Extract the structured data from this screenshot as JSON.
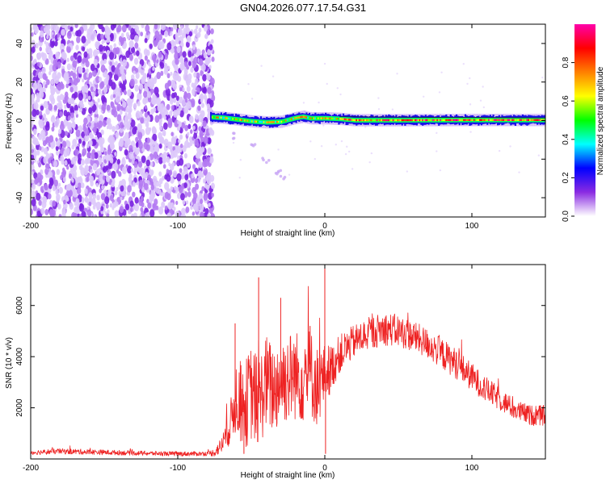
{
  "title": "GN04.2026.077.17.54.G31",
  "chart_data": [
    {
      "type": "heatmap",
      "xlabel": "Height of straight line (km)",
      "ylabel": "Frequency (Hz)",
      "xlim": [
        -200,
        150
      ],
      "ylim": [
        -50,
        50
      ],
      "xticks": [
        -200,
        -100,
        0,
        100
      ],
      "yticks": [
        -40,
        -20,
        0,
        20,
        40
      ],
      "grid": false,
      "noise_region": {
        "x": [
          -200,
          -76
        ],
        "y": [
          -50,
          50
        ],
        "amplitude_range": [
          0.0,
          0.12
        ]
      },
      "signal_band": {
        "x": [
          -78,
          150
        ],
        "center_hz": [
          [
            -78,
            1.8
          ],
          [
            -70,
            1.5
          ],
          [
            -60,
            0.6
          ],
          [
            -50,
            -0.4
          ],
          [
            -40,
            -0.9
          ],
          [
            -30,
            -0.6
          ],
          [
            -20,
            1.4
          ],
          [
            -15,
            2.0
          ],
          [
            -10,
            1.2
          ],
          [
            0,
            1.2
          ],
          [
            10,
            0.9
          ],
          [
            20,
            0.2
          ],
          [
            50,
            0.2
          ],
          [
            100,
            0.3
          ],
          [
            150,
            0.3
          ]
        ],
        "amplitude_range": [
          0.2,
          1.0
        ]
      },
      "faint_trail": [
        [
          -60,
          -8
        ],
        [
          -50,
          -13
        ],
        [
          -40,
          -21
        ],
        [
          -33,
          -26
        ],
        [
          -30,
          -29
        ]
      ],
      "colorbar": {
        "label": "Normalized spectral amplitude",
        "range": [
          0.0,
          1.0
        ],
        "ticks": [
          0.0,
          0.2,
          0.4,
          0.6,
          0.8
        ],
        "colors": [
          "#ffffff",
          "#8a2be2",
          "#0000ff",
          "#00ffff",
          "#00ff00",
          "#ffff00",
          "#ff8000",
          "#ff0000",
          "#ff00aa"
        ]
      }
    },
    {
      "type": "line",
      "xlabel": "Height of straight line (km)",
      "ylabel": "SNR (10 * v/v)",
      "xlim": [
        -200,
        150
      ],
      "ylim": [
        0,
        7600
      ],
      "xticks": [
        -200,
        -100,
        0,
        100
      ],
      "yticks": [
        2000,
        4000,
        6000
      ],
      "grid": false,
      "series": [
        {
          "color": "#ee2222",
          "envelope": {
            "x": [
              -200,
              -180,
              -150,
              -120,
              -100,
              -80,
              -75,
              -70,
              -65,
              -60,
              -55,
              -50,
              -45,
              -40,
              -35,
              -30,
              -25,
              -20,
              -15,
              -10,
              -5,
              0,
              5,
              10,
              20,
              30,
              40,
              50,
              60,
              70,
              80,
              90,
              100,
              110,
              120,
              130,
              140,
              150
            ],
            "mean": [
              250,
              300,
              260,
              220,
              200,
              210,
              250,
              550,
              1200,
              2500,
              2000,
              2600,
              2200,
              3000,
              2700,
              3100,
              3200,
              3300,
              3100,
              3400,
              2800,
              3300,
              3600,
              4100,
              4600,
              4900,
              5100,
              5000,
              4800,
              4500,
              4100,
              3700,
              3200,
              2700,
              2300,
              1900,
              1700,
              1700
            ],
            "spread": [
              90,
              110,
              100,
              90,
              90,
              90,
              150,
              350,
              700,
              1500,
              1700,
              1900,
              1800,
              1900,
              1800,
              1800,
              1800,
              1800,
              1700,
              1800,
              1600,
              1200,
              900,
              750,
              650,
              650,
              650,
              650,
              600,
              600,
              600,
              600,
              550,
              500,
              450,
              400,
              400,
              400
            ]
          },
          "peaks": [
            [
              -61,
              5300
            ],
            [
              -45,
              7100
            ],
            [
              -30,
              6300
            ],
            [
              -10,
              5200
            ],
            [
              0,
              7500
            ],
            [
              0.5,
              200
            ],
            [
              -55,
              200
            ]
          ]
        }
      ]
    }
  ]
}
